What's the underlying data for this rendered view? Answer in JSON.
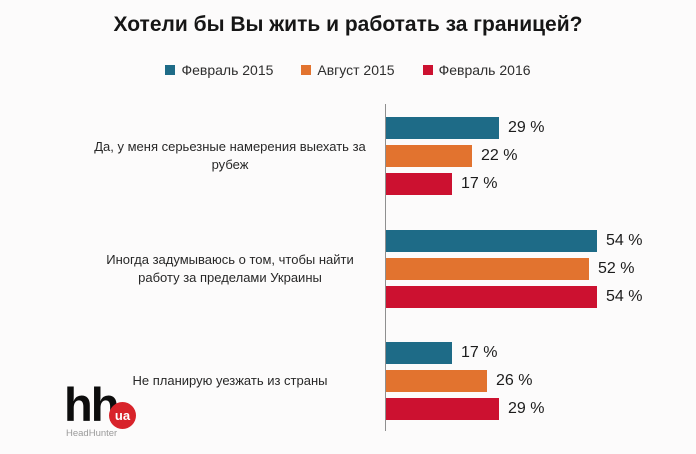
{
  "title": "Хотели бы Вы жить и работать за границей?",
  "chart_data": {
    "type": "bar",
    "orientation": "horizontal",
    "title": "Хотели бы Вы жить и работать за границей?",
    "categories": [
      "Да, у меня серьезные намерения выехать за рубеж",
      "Иногда задумываюсь о том, чтобы найти работу за пределами Украины",
      "Не планирую уезжать из страны"
    ],
    "series": [
      {
        "name": "Февраль 2015",
        "color": "#1E6B87",
        "values": [
          29,
          54,
          17
        ]
      },
      {
        "name": "Август 2015",
        "color": "#E2732F",
        "values": [
          22,
          52,
          26
        ]
      },
      {
        "name": "Февраль 2016",
        "color": "#CC1130",
        "values": [
          17,
          54,
          29
        ]
      }
    ],
    "value_suffix": " %",
    "xlim": [
      0,
      60
    ],
    "grid": false,
    "axis_line_color": "#8F8F8F",
    "legend_position": "top-center"
  },
  "logo": {
    "hh": "hh",
    "ua": "ua",
    "caption": "HeadHunter",
    "circle_color": "#D8232A"
  }
}
